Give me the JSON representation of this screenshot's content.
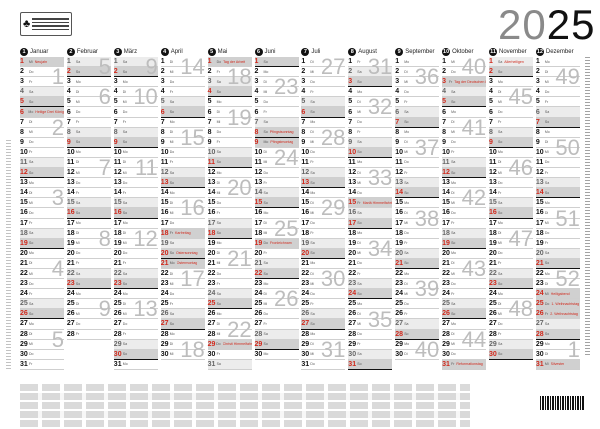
{
  "year": {
    "prefix": "20",
    "suffix": "25"
  },
  "weekdays": [
    "Mo",
    "Di",
    "Mi",
    "Do",
    "Fr",
    "Sa",
    "So"
  ],
  "months": [
    {
      "num": "1",
      "name": "Januar"
    },
    {
      "num": "2",
      "name": "Februar"
    },
    {
      "num": "3",
      "name": "März"
    },
    {
      "num": "4",
      "name": "April"
    },
    {
      "num": "5",
      "name": "Mai"
    },
    {
      "num": "6",
      "name": "Juni"
    },
    {
      "num": "7",
      "name": "Juli"
    },
    {
      "num": "8",
      "name": "August"
    },
    {
      "num": "9",
      "name": "September"
    },
    {
      "num": "10",
      "name": "Oktober"
    },
    {
      "num": "11",
      "name": "November"
    },
    {
      "num": "12",
      "name": "Dezember"
    }
  ],
  "holidays": [
    {
      "month": 1,
      "day": 1,
      "name": "Neujahr"
    },
    {
      "month": 1,
      "day": 6,
      "name": "Heilige Drei Könige"
    },
    {
      "month": 4,
      "day": 18,
      "name": "Karfreitag"
    },
    {
      "month": 4,
      "day": 20,
      "name": "Ostersonntag"
    },
    {
      "month": 4,
      "day": 21,
      "name": "Ostermontag"
    },
    {
      "month": 5,
      "day": 1,
      "name": "Tag der Arbeit"
    },
    {
      "month": 5,
      "day": 29,
      "name": "Christi Himmelfahrt"
    },
    {
      "month": 6,
      "day": 8,
      "name": "Pfingstsonntag"
    },
    {
      "month": 6,
      "day": 9,
      "name": "Pfingstmontag"
    },
    {
      "month": 6,
      "day": 19,
      "name": "Fronleichnam"
    },
    {
      "month": 8,
      "day": 15,
      "name": "Mariä Himmelfahrt"
    },
    {
      "month": 10,
      "day": 3,
      "name": "Tag der Deutschen Einheit"
    },
    {
      "month": 10,
      "day": 31,
      "name": "Reformationstag"
    },
    {
      "month": 11,
      "day": 1,
      "name": "Allerheiligen"
    },
    {
      "month": 12,
      "day": 24,
      "name": "Heiligabend"
    },
    {
      "month": 12,
      "day": 25,
      "name": "1. Weihnachtstag"
    },
    {
      "month": 12,
      "day": 26,
      "name": "2. Weihnachtstag"
    },
    {
      "month": 12,
      "day": 31,
      "name": "Silvester"
    }
  ],
  "colors": {
    "holiday": "#d0291c",
    "weekend_sat": "#ececec",
    "weekend_sun": "#d0d0d0",
    "week_number": "#bdbdbd"
  },
  "icons": {
    "logo": "fsc-tree-logo",
    "barcode": "barcode"
  }
}
